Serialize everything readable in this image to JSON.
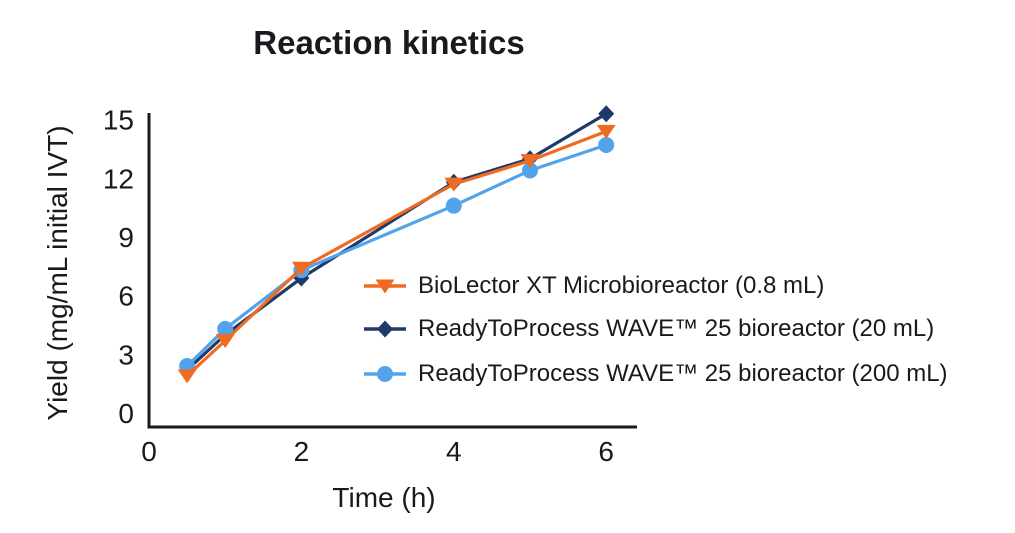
{
  "chart_data": {
    "type": "line",
    "title": "Reaction kinetics",
    "xlabel": "Time (h)",
    "ylabel": "Yield (mg/mL initial IVT)",
    "x": [
      0.5,
      1,
      2,
      4,
      5,
      6
    ],
    "xticks": [
      0,
      2,
      4,
      6
    ],
    "yticks": [
      0,
      3,
      6,
      9,
      12,
      15
    ],
    "xlim": [
      0,
      6.4
    ],
    "ylim": [
      0,
      15.5
    ],
    "grid": false,
    "legend_position": "inside-right",
    "series": [
      {
        "name": "BioLector XT Microbioreactor (0.8 mL)",
        "color": "#F06B22",
        "marker": "triangle-down",
        "values": [
          1.9,
          3.7,
          7.4,
          11.7,
          12.9,
          14.4
        ]
      },
      {
        "name": "ReadyToProcess WAVE™ 25 bioreactor (20 mL)",
        "color": "#1F3A68",
        "marker": "diamond",
        "values": [
          2.2,
          4.0,
          6.9,
          11.8,
          13.0,
          15.3
        ]
      },
      {
        "name": "ReadyToProcess WAVE™ 25 bioreactor (200 mL)",
        "color": "#52A3E9",
        "marker": "circle",
        "values": [
          2.4,
          4.3,
          7.3,
          10.6,
          12.4,
          13.7
        ]
      }
    ]
  },
  "colors": {
    "text": "#1A1A1E",
    "axis": "#1A1A1A",
    "background": "#FFFFFF"
  }
}
